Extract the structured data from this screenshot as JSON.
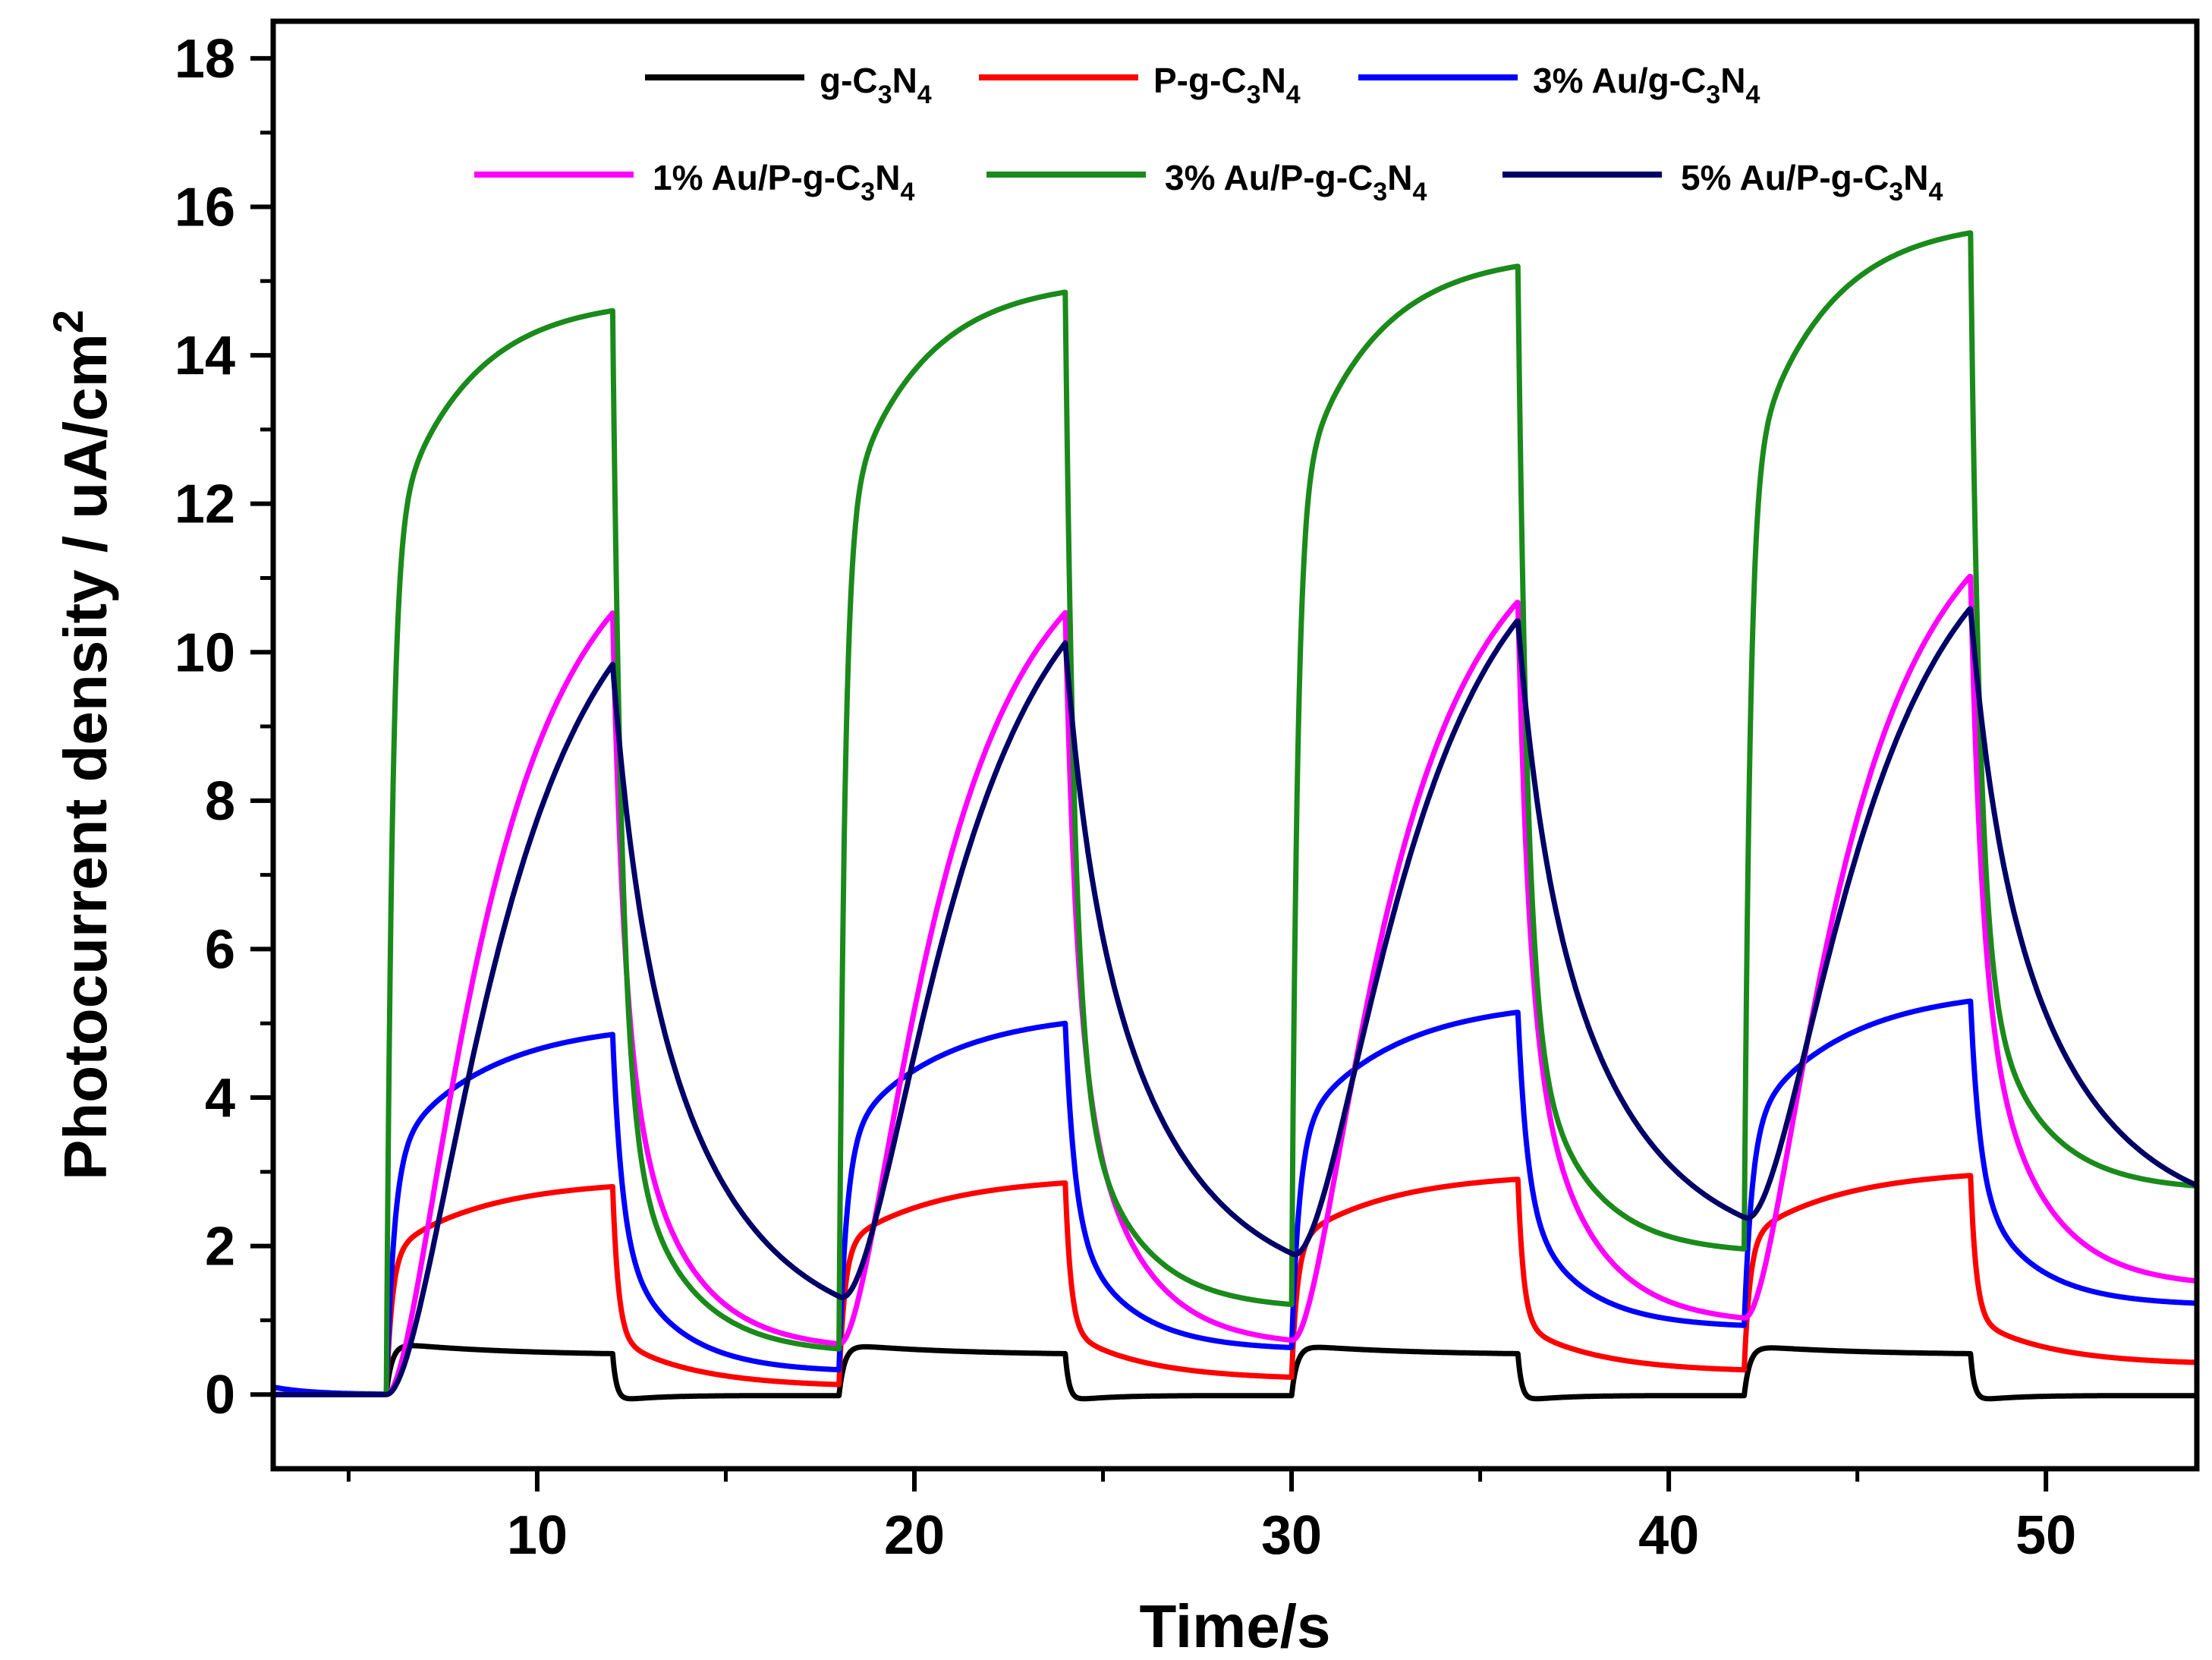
{
  "chart_data": {
    "type": "line",
    "title": "",
    "xlabel": "Time/s",
    "ylabel": "Photocurrent density / uA/cm",
    "ylabel_superscript": "2",
    "xlim": [
      3,
      54
    ],
    "ylim": [
      -1,
      18.5
    ],
    "xticks": [
      10,
      20,
      30,
      40,
      50
    ],
    "xtick_labels": [
      "10",
      "20",
      "30",
      "40",
      "50"
    ],
    "xminor": [
      5,
      15,
      25,
      35,
      45
    ],
    "yticks": [
      0,
      2,
      4,
      6,
      8,
      10,
      12,
      14,
      16,
      18
    ],
    "ytick_labels": [
      "0",
      "2",
      "4",
      "6",
      "8",
      "10",
      "12",
      "14",
      "16",
      "18"
    ],
    "yminor": [
      1,
      3,
      5,
      7,
      9,
      11,
      13,
      15,
      17
    ],
    "grid": false,
    "legend_position": "top",
    "light_on_times": [
      6,
      18,
      30,
      42
    ],
    "light_off_times": [
      12,
      24,
      36,
      48
    ],
    "series": [
      {
        "name": "g-C3N4",
        "legend_parts": [
          "g-C",
          "3",
          "N",
          "4"
        ],
        "color": "#000000",
        "baseline": 0.0,
        "on_values": [
          [
            0.7,
            0.55
          ],
          [
            0.68,
            0.55
          ],
          [
            0.67,
            0.55
          ],
          [
            0.66,
            0.55
          ]
        ],
        "off_end_values": [
          -0.02,
          -0.02,
          -0.02,
          -0.02
        ],
        "undershoot": -0.12,
        "rise_tau": 0.15,
        "grow_tau": 3.0,
        "decay_fast_tau": 0.1,
        "decay_slow_tau": 3.0,
        "fast_fraction": 0.95
      },
      {
        "name": "P-g-C3N4",
        "legend_parts": [
          "P-g-C",
          "3",
          "N",
          "4"
        ],
        "color": "#ff0000",
        "baseline": 0.0,
        "on_values": [
          [
            1.9,
            2.8
          ],
          [
            2.0,
            2.85
          ],
          [
            2.05,
            2.9
          ],
          [
            2.1,
            2.95
          ]
        ],
        "off_end_values": [
          0.1,
          0.2,
          0.3,
          0.4
        ],
        "rise_tau": 0.15,
        "grow_tau": 2.5,
        "decay_fast_tau": 0.15,
        "decay_slow_tau": 2.0,
        "fast_fraction": 0.75
      },
      {
        "name": "3% Au/g-C3N4",
        "legend_parts": [
          "3% Au/g-C",
          "3",
          "N",
          "4"
        ],
        "color": "#0000ff",
        "baseline": 0.1,
        "on_values": [
          [
            3.2,
            4.85
          ],
          [
            3.4,
            5.0
          ],
          [
            3.5,
            5.15
          ],
          [
            3.6,
            5.3
          ]
        ],
        "off_end_values": [
          0.3,
          0.6,
          0.9,
          1.2
        ],
        "rise_tau": 0.2,
        "grow_tau": 2.5,
        "decay_fast_tau": 0.25,
        "decay_slow_tau": 1.5,
        "fast_fraction": 0.6
      },
      {
        "name": "1% Au/P-g-C3N4",
        "legend_parts": [
          "1% Au/P-g-C",
          "3",
          "N",
          "4"
        ],
        "color": "#ff00ff",
        "baseline": 0.0,
        "on_values": [
          [
            0.0,
            10.6
          ],
          [
            0.6,
            10.6
          ],
          [
            0.6,
            10.75
          ],
          [
            0.95,
            11.1
          ]
        ],
        "off_end_values": [
          0.6,
          0.65,
          0.95,
          1.45
        ],
        "rise_tau": 1.2,
        "grow_tau": 3.0,
        "decay_fast_tau": 0.3,
        "decay_slow_tau": 1.5,
        "fast_fraction": 0.55
      },
      {
        "name": "3% Au/P-g-C3N4",
        "legend_parts": [
          "3% Au/P-g-C",
          "3",
          "N",
          "4"
        ],
        "color": "#1a8a1a",
        "baseline": 0.0,
        "on_values": [
          [
            11.5,
            14.6
          ],
          [
            11.7,
            14.85
          ],
          [
            12.0,
            15.2
          ],
          [
            12.3,
            15.65
          ]
        ],
        "off_end_values": [
          0.55,
          1.15,
          1.9,
          2.75
        ],
        "rise_tau": 0.15,
        "grow_tau": 2.0,
        "decay_fast_tau": 0.25,
        "decay_slow_tau": 1.5,
        "fast_fraction": 0.75
      },
      {
        "name": "5% Au/P-g-C3N4",
        "legend_parts": [
          "5% Au/P-g-C",
          "3",
          "N",
          "4"
        ],
        "color": "#000066",
        "baseline": 0.0,
        "on_values": [
          [
            0.0,
            10.2
          ],
          [
            0.7,
            10.45
          ],
          [
            1.3,
            10.75
          ],
          [
            1.8,
            10.9
          ]
        ],
        "off_end_values": [
          0.7,
          1.3,
          1.8,
          2.25
        ],
        "rise_tau": 1.8,
        "grow_tau": 3.0,
        "decay_fast_tau": 0.6,
        "decay_slow_tau": 2.5,
        "fast_fraction": 0.25
      }
    ]
  }
}
